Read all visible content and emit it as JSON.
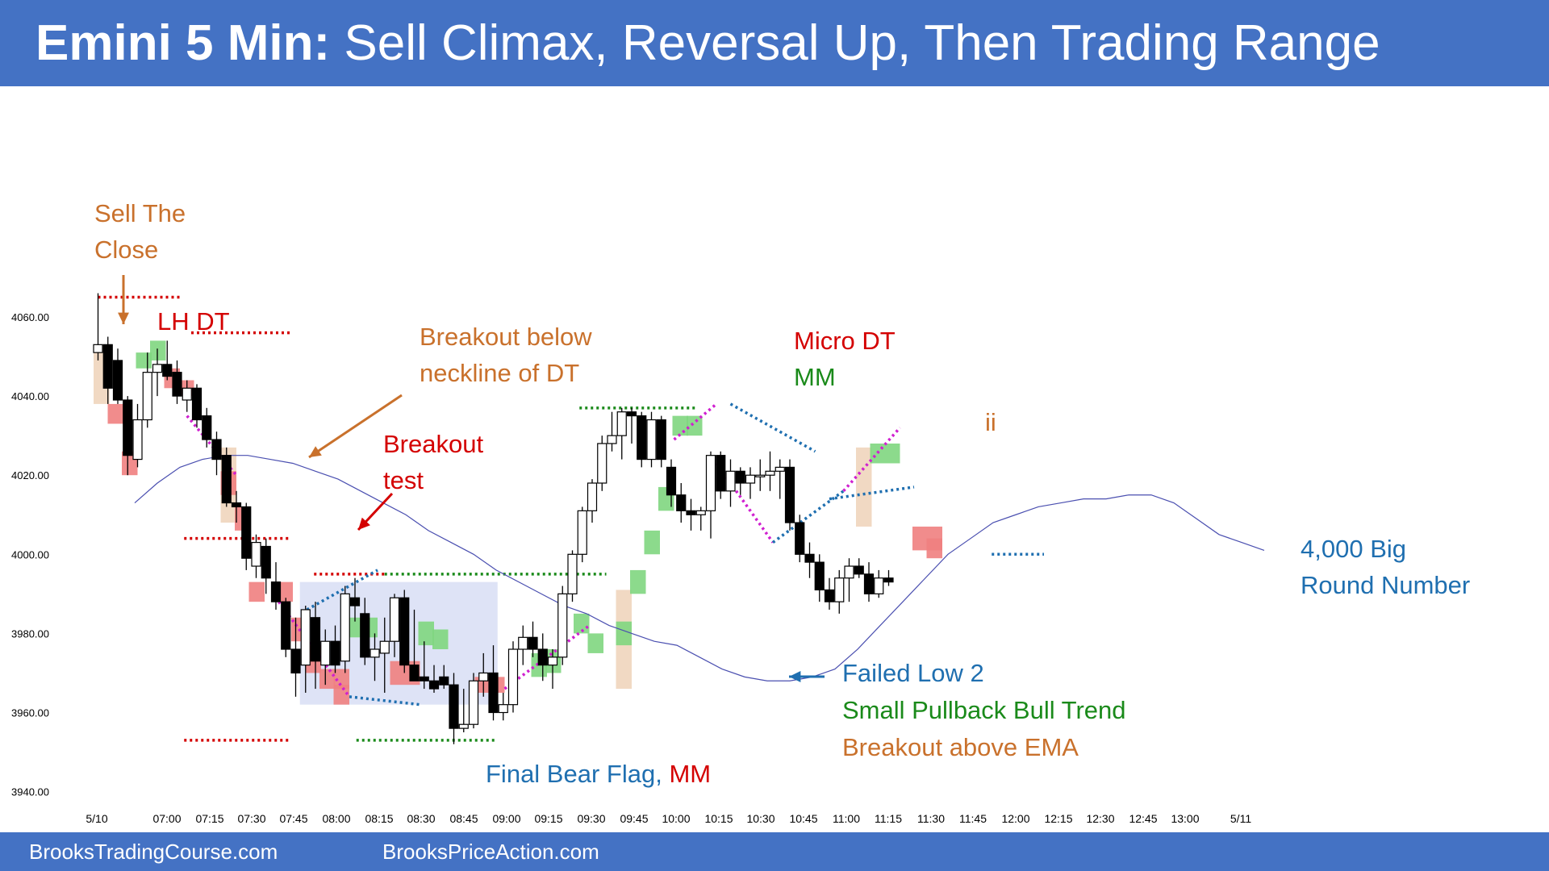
{
  "title": {
    "prefix": "Emini 5 Min:",
    "text": "Sell Climax, Reversal Up, Then Trading Range"
  },
  "footer": {
    "left": "BrooksTradingCourse.com",
    "right": "BrooksPriceAction.com"
  },
  "colors": {
    "banner": "#4472c4",
    "bull_body": "#ffffff",
    "bear_body": "#000000",
    "ema": "#4a4fb0",
    "red_box": "#f08080",
    "green_box": "#7fd67f",
    "tan_box": "#f0d5bd",
    "trading_range": "#d8def5",
    "orange": "#c9712c",
    "red": "#d40000",
    "green": "#1a8a1a",
    "blue": "#1f6fb0",
    "magenta": "#d020d0"
  },
  "chart_data": {
    "type": "candlestick",
    "title": "",
    "xlabel": "",
    "ylabel": "",
    "ylim": [
      3940,
      4065
    ],
    "y_ticks": [
      "4060.00",
      "4040.00",
      "4020.00",
      "4000.00",
      "3980.00",
      "3960.00",
      "3940.00"
    ],
    "x_ticks": [
      "5/10",
      "07:00",
      "07:15",
      "07:30",
      "07:45",
      "08:00",
      "08:15",
      "08:30",
      "08:45",
      "09:00",
      "09:15",
      "09:30",
      "09:45",
      "10:00",
      "10:15",
      "10:30",
      "10:45",
      "11:00",
      "11:15",
      "11:30",
      "11:45",
      "12:00",
      "12:15",
      "12:30",
      "12:45",
      "13:00",
      "5/11"
    ],
    "bar_index_of_first_tick": 0,
    "bars_per_tick": 3,
    "candles": [
      {
        "o": 4051,
        "h": 4066,
        "l": 4049,
        "c": 4053
      },
      {
        "o": 4053,
        "h": 4055,
        "l": 4038,
        "c": 4042
      },
      {
        "o": 4049,
        "h": 4052,
        "l": 4038,
        "c": 4039
      },
      {
        "o": 4039,
        "h": 4040,
        "l": 4020,
        "c": 4025
      },
      {
        "o": 4024,
        "h": 4038,
        "l": 4022,
        "c": 4034
      },
      {
        "o": 4034,
        "h": 4051,
        "l": 4032,
        "c": 4046
      },
      {
        "o": 4046,
        "h": 4052,
        "l": 4040,
        "c": 4048
      },
      {
        "o": 4048,
        "h": 4054,
        "l": 4044,
        "c": 4045
      },
      {
        "o": 4046,
        "h": 4049,
        "l": 4038,
        "c": 4040
      },
      {
        "o": 4039,
        "h": 4044,
        "l": 4036,
        "c": 4042
      },
      {
        "o": 4042,
        "h": 4043,
        "l": 4032,
        "c": 4034
      },
      {
        "o": 4035,
        "h": 4037,
        "l": 4027,
        "c": 4029
      },
      {
        "o": 4029,
        "h": 4031,
        "l": 4020,
        "c": 4024
      },
      {
        "o": 4025,
        "h": 4027,
        "l": 4012,
        "c": 4013
      },
      {
        "o": 4013,
        "h": 4016,
        "l": 4008,
        "c": 4012
      },
      {
        "o": 4012,
        "h": 4013,
        "l": 3996,
        "c": 3999
      },
      {
        "o": 3997,
        "h": 4005,
        "l": 3994,
        "c": 4003
      },
      {
        "o": 4002,
        "h": 4004,
        "l": 3990,
        "c": 3994
      },
      {
        "o": 3993,
        "h": 3998,
        "l": 3986,
        "c": 3988
      },
      {
        "o": 3988,
        "h": 3989,
        "l": 3974,
        "c": 3976
      },
      {
        "o": 3976,
        "h": 3984,
        "l": 3964,
        "c": 3970
      },
      {
        "o": 3972,
        "h": 3987,
        "l": 3965,
        "c": 3986
      },
      {
        "o": 3984,
        "h": 3988,
        "l": 3966,
        "c": 3973
      },
      {
        "o": 3972,
        "h": 3981,
        "l": 3967,
        "c": 3978
      },
      {
        "o": 3978,
        "h": 3982,
        "l": 3970,
        "c": 3972
      },
      {
        "o": 3973,
        "h": 3992,
        "l": 3970,
        "c": 3990
      },
      {
        "o": 3989,
        "h": 3994,
        "l": 3983,
        "c": 3987
      },
      {
        "o": 3985,
        "h": 3989,
        "l": 3972,
        "c": 3974
      },
      {
        "o": 3974,
        "h": 3980,
        "l": 3968,
        "c": 3976
      },
      {
        "o": 3975,
        "h": 3984,
        "l": 3965,
        "c": 3978
      },
      {
        "o": 3978,
        "h": 3990,
        "l": 3974,
        "c": 3989
      },
      {
        "o": 3989,
        "h": 3991,
        "l": 3970,
        "c": 3972
      },
      {
        "o": 3972,
        "h": 3986,
        "l": 3968,
        "c": 3968
      },
      {
        "o": 3969,
        "h": 3978,
        "l": 3966,
        "c": 3968
      },
      {
        "o": 3968,
        "h": 3972,
        "l": 3965,
        "c": 3966
      },
      {
        "o": 3969,
        "h": 3972,
        "l": 3966,
        "c": 3967
      },
      {
        "o": 3967,
        "h": 3970,
        "l": 3952,
        "c": 3956
      },
      {
        "o": 3956,
        "h": 3966,
        "l": 3955,
        "c": 3957
      },
      {
        "o": 3957,
        "h": 3970,
        "l": 3956,
        "c": 3968
      },
      {
        "o": 3968,
        "h": 3975,
        "l": 3964,
        "c": 3970
      },
      {
        "o": 3970,
        "h": 3977,
        "l": 3958,
        "c": 3960
      },
      {
        "o": 3960,
        "h": 3965,
        "l": 3958,
        "c": 3962
      },
      {
        "o": 3962,
        "h": 3978,
        "l": 3960,
        "c": 3976
      },
      {
        "o": 3976,
        "h": 3982,
        "l": 3972,
        "c": 3979
      },
      {
        "o": 3979,
        "h": 3983,
        "l": 3974,
        "c": 3976
      },
      {
        "o": 3976,
        "h": 3980,
        "l": 3968,
        "c": 3972
      },
      {
        "o": 3972,
        "h": 3976,
        "l": 3966,
        "c": 3974
      },
      {
        "o": 3974,
        "h": 3992,
        "l": 3972,
        "c": 3990
      },
      {
        "o": 3990,
        "h": 4001,
        "l": 3988,
        "c": 4000
      },
      {
        "o": 4000,
        "h": 4012,
        "l": 3998,
        "c": 4011
      },
      {
        "o": 4011,
        "h": 4019,
        "l": 4008,
        "c": 4018
      },
      {
        "o": 4018,
        "h": 4030,
        "l": 4016,
        "c": 4028
      },
      {
        "o": 4028,
        "h": 4036,
        "l": 4026,
        "c": 4030
      },
      {
        "o": 4030,
        "h": 4037,
        "l": 4024,
        "c": 4036
      },
      {
        "o": 4036,
        "h": 4037,
        "l": 4028,
        "c": 4035
      },
      {
        "o": 4035,
        "h": 4036,
        "l": 4022,
        "c": 4024
      },
      {
        "o": 4024,
        "h": 4036,
        "l": 4022,
        "c": 4034
      },
      {
        "o": 4034,
        "h": 4035,
        "l": 4022,
        "c": 4024
      },
      {
        "o": 4022,
        "h": 4024,
        "l": 4012,
        "c": 4015
      },
      {
        "o": 4015,
        "h": 4018,
        "l": 4008,
        "c": 4011
      },
      {
        "o": 4011,
        "h": 4014,
        "l": 4006,
        "c": 4010
      },
      {
        "o": 4010,
        "h": 4012,
        "l": 4006,
        "c": 4011
      },
      {
        "o": 4011,
        "h": 4026,
        "l": 4004,
        "c": 4025
      },
      {
        "o": 4025,
        "h": 4026,
        "l": 4014,
        "c": 4016
      },
      {
        "o": 4016,
        "h": 4024,
        "l": 4012,
        "c": 4021
      },
      {
        "o": 4021,
        "h": 4022,
        "l": 4015,
        "c": 4018
      },
      {
        "o": 4018,
        "h": 4022,
        "l": 4014,
        "c": 4020
      },
      {
        "o": 4020,
        "h": 4024,
        "l": 4016,
        "c": 4020
      },
      {
        "o": 4020,
        "h": 4026,
        "l": 4016,
        "c": 4021
      },
      {
        "o": 4021,
        "h": 4024,
        "l": 4014,
        "c": 4022
      },
      {
        "o": 4022,
        "h": 4024,
        "l": 4006,
        "c": 4008
      },
      {
        "o": 4008,
        "h": 4010,
        "l": 3998,
        "c": 4000
      },
      {
        "o": 4000,
        "h": 4003,
        "l": 3994,
        "c": 3998
      },
      {
        "o": 3998,
        "h": 4000,
        "l": 3988,
        "c": 3991
      },
      {
        "o": 3991,
        "h": 3994,
        "l": 3986,
        "c": 3988
      },
      {
        "o": 3988,
        "h": 3996,
        "l": 3985,
        "c": 3994
      },
      {
        "o": 3994,
        "h": 3999,
        "l": 3988,
        "c": 3997
      },
      {
        "o": 3997,
        "h": 3999,
        "l": 3994,
        "c": 3995
      },
      {
        "o": 3995,
        "h": 3998,
        "l": 3988,
        "c": 3990
      },
      {
        "o": 3990,
        "h": 3996,
        "l": 3989,
        "c": 3994
      },
      {
        "o": 3994,
        "h": 3996,
        "l": 3992,
        "c": 3993
      }
    ],
    "ema": [
      4013,
      4018,
      4022,
      4024,
      4025,
      4025,
      4024,
      4023,
      4021,
      4019,
      4016,
      4013,
      4010,
      4006,
      4003,
      4000,
      3996,
      3993,
      3990,
      3987,
      3985,
      3982,
      3980,
      3978,
      3977,
      3974,
      3971,
      3969,
      3968,
      3968,
      3969,
      3971,
      3976,
      3982,
      3988,
      3994,
      4000,
      4004,
      4008,
      4010,
      4012,
      4013,
      4014,
      4014,
      4015,
      4015,
      4013,
      4009,
      4005,
      4003,
      4001
    ],
    "annotations": [
      {
        "text_lines": [
          "Sell The",
          "Close"
        ],
        "color": "orange"
      },
      {
        "text_lines": [
          "LH DT"
        ],
        "color": "red"
      },
      {
        "text_lines": [
          "Breakout below",
          "neckline of DT"
        ],
        "color": "orange"
      },
      {
        "text_lines": [
          "Breakout",
          "test"
        ],
        "color": "red"
      },
      {
        "text_lines": [
          "Micro DT"
        ],
        "color": "red"
      },
      {
        "text_lines": [
          "MM"
        ],
        "color": "green"
      },
      {
        "text_lines": [
          "ii"
        ],
        "color": "orange"
      },
      {
        "text_lines": [
          "4,000 Big",
          "Round Number"
        ],
        "color": "blue"
      },
      {
        "text_lines": [
          "Failed Low 2"
        ],
        "color": "blue"
      },
      {
        "text_lines": [
          "Small Pullback Bull Trend"
        ],
        "color": "green"
      },
      {
        "text_lines": [
          "Breakout above EMA"
        ],
        "color": "orange"
      },
      {
        "text_lines": [
          "Final Bear Flag,",
          "MM"
        ],
        "colors": [
          "blue",
          "red"
        ]
      }
    ]
  }
}
